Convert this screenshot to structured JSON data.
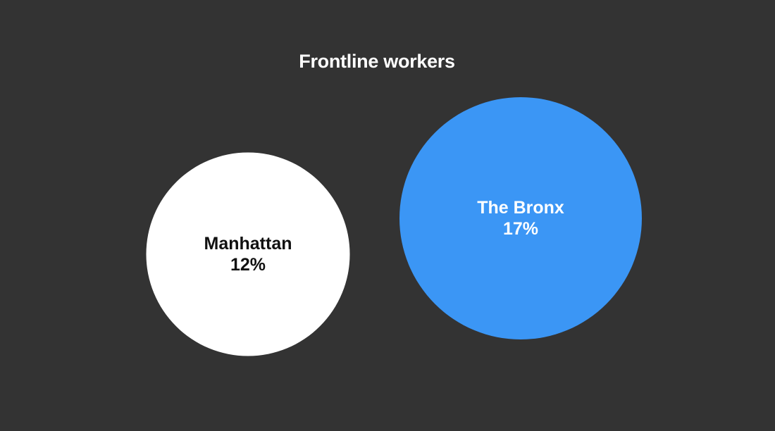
{
  "chart_data": {
    "type": "bubble",
    "title": "Frontline workers",
    "categories": [
      "Manhattan",
      "The Bronx"
    ],
    "values": [
      12,
      17
    ],
    "value_labels": [
      "12%",
      "17%"
    ],
    "unit": "%",
    "colors": [
      "#ffffff",
      "#3b96f5"
    ],
    "label_colors": [
      "#111111",
      "#ffffff"
    ],
    "background": "#333333",
    "legend": "none",
    "grid": false
  }
}
